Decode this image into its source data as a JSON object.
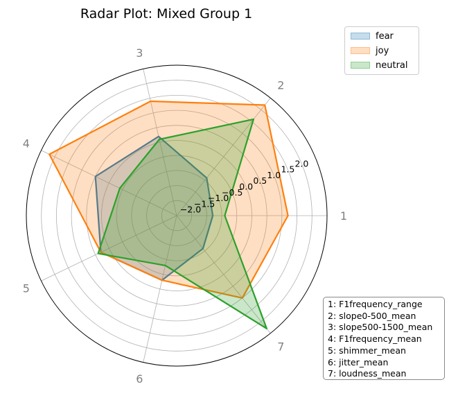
{
  "chart_data": {
    "type": "radar",
    "title": "Radar Plot: Mixed Group 1",
    "axes": [
      "1",
      "2",
      "3",
      "4",
      "5",
      "6",
      "7"
    ],
    "axis_key": [
      "1: F1frequency_range",
      "2: slope0-500_mean",
      "3: slope500-1500_mean",
      "4: F1frequency_mean",
      "5: shimmer_mean",
      "6: jitter_mean",
      "7: loudness_mean"
    ],
    "radial_ticks": [
      "−2.0",
      "−1.5",
      "−1.0",
      "−0.5",
      "0.0",
      "0.5",
      "1.0",
      "1.5",
      "2.0"
    ],
    "radial_tick_values": [
      -2.0,
      -1.5,
      -1.0,
      -0.5,
      0.0,
      0.5,
      1.0,
      1.5,
      2.0
    ],
    "rlim": [
      -2.5,
      2.5
    ],
    "grid": true,
    "legend_position": "top-right",
    "series": [
      {
        "name": "fear",
        "color": "#1f77b4",
        "values": [
          -1.3,
          -0.9,
          0.2,
          0.5,
          0.3,
          -0.3,
          -1.1
        ]
      },
      {
        "name": "joy",
        "color": "#ff7f0e",
        "values": [
          1.2,
          2.2,
          1.4,
          2.2,
          0.3,
          -0.3,
          1.0
        ]
      },
      {
        "name": "neutral",
        "color": "#2ca02c",
        "values": [
          -0.9,
          1.6,
          0.1,
          -0.4,
          0.4,
          -0.8,
          2.3
        ]
      }
    ]
  }
}
